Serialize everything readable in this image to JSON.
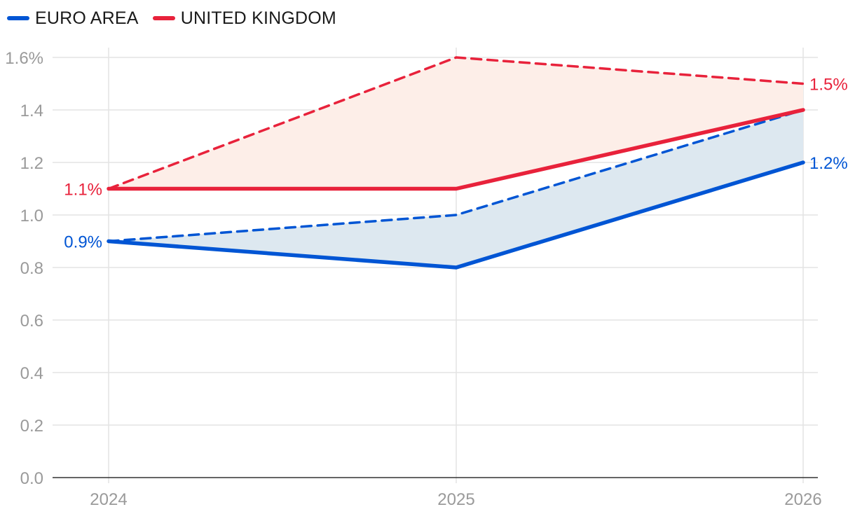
{
  "chart_data": {
    "type": "line",
    "x": [
      "2024",
      "2025",
      "2026"
    ],
    "ylim": [
      0,
      1.6
    ],
    "y_ticks": [
      "0.0",
      "0.2",
      "0.4",
      "0.6",
      "0.8",
      "1.0",
      "1.2",
      "1.4",
      "1.6%"
    ],
    "grid": true,
    "legend_position": "top-left",
    "series": [
      {
        "name": "EURO AREA",
        "color": "#0055d4",
        "style": "solid",
        "values": [
          0.9,
          0.8,
          1.2
        ]
      },
      {
        "name": "UNITED KINGDOM",
        "color": "#e8223b",
        "style": "solid",
        "values": [
          1.1,
          1.1,
          1.4
        ]
      },
      {
        "color": "#0055d4",
        "style": "dashed",
        "values": [
          0.9,
          1.0,
          1.4
        ]
      },
      {
        "color": "#e8223b",
        "style": "dashed",
        "values": [
          1.1,
          1.6,
          1.5
        ]
      }
    ],
    "shaded_areas": [
      {
        "between": [
          1,
          3
        ],
        "color": "#fdeee8"
      },
      {
        "between": [
          0,
          2
        ],
        "color": "#dde8f0"
      }
    ],
    "annotations": [
      {
        "text": "1.1%",
        "series": 1,
        "point": 0,
        "side": "left",
        "color": "#e8223b"
      },
      {
        "text": "0.9%",
        "series": 0,
        "point": 0,
        "side": "left",
        "color": "#0055d4"
      },
      {
        "text": "1.5%",
        "series": 3,
        "point": 2,
        "side": "right",
        "color": "#e8223b"
      },
      {
        "text": "1.2%",
        "series": 0,
        "point": 2,
        "side": "right",
        "color": "#0055d4"
      }
    ]
  }
}
